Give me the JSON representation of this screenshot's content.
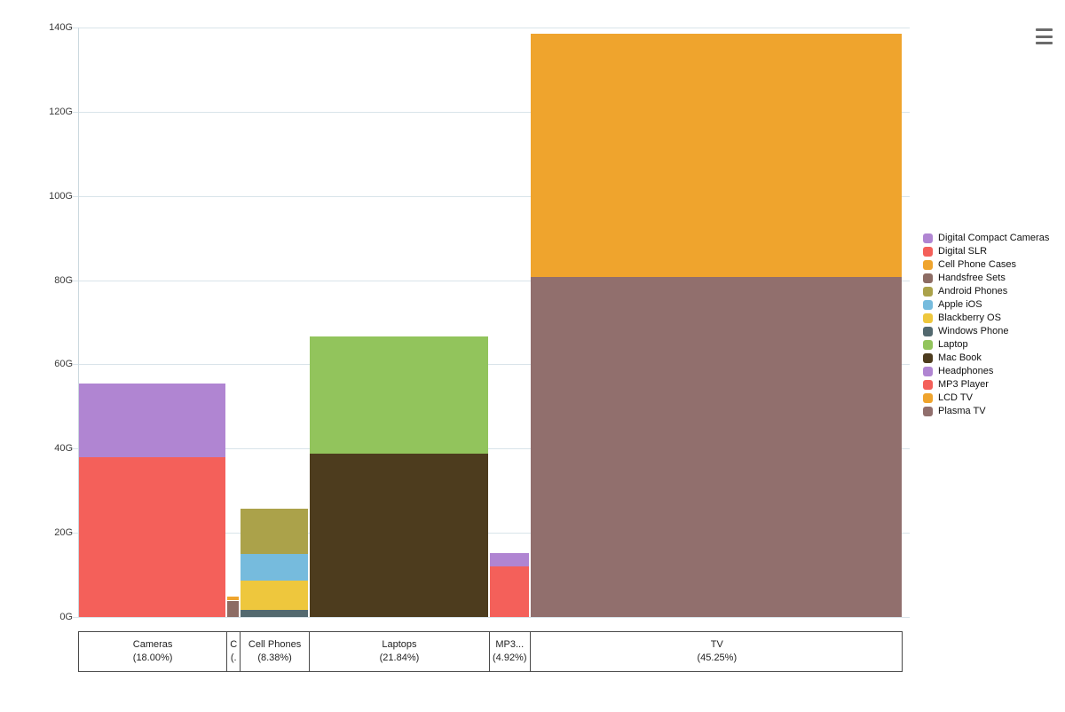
{
  "export_menu": {
    "icon": "hamburger-menu-icon"
  },
  "chart_data": {
    "type": "mekko",
    "title": "",
    "value_suffix": "G",
    "grid": true,
    "legend_position": "right",
    "y_axis": {
      "min": 0,
      "max": 140,
      "step": 20,
      "ticks": [
        "0G",
        "20G",
        "40G",
        "60G",
        "80G",
        "100G",
        "120G",
        "140G"
      ]
    },
    "columns": [
      {
        "category": "Cameras",
        "pct_label": "(18.00%)",
        "width_pct": 18.0,
        "segments": [
          {
            "name": "Digital SLR",
            "value": 38.0,
            "color": "#f4605a"
          },
          {
            "name": "Digital Compact Cameras",
            "value": 17.5,
            "color": "#b085d2"
          }
        ]
      },
      {
        "category": "C",
        "pct_label": "(.",
        "width_pct": 1.61,
        "segments": [
          {
            "name": "Handsfree Sets",
            "value": 3.9,
            "color": "#8d6c64"
          },
          {
            "name": "Cell Phone Cases",
            "value": 1.0,
            "color": "#efa42d"
          }
        ]
      },
      {
        "category": "Cell Phones",
        "pct_label": "(8.38%)",
        "width_pct": 8.38,
        "segments": [
          {
            "name": "Windows Phone",
            "value": 1.6,
            "color": "#53696f"
          },
          {
            "name": "Blackberry OS",
            "value": 7.0,
            "color": "#eec73d"
          },
          {
            "name": "Apple iOS",
            "value": 6.3,
            "color": "#76bbdd"
          },
          {
            "name": "Android Phones",
            "value": 10.9,
            "color": "#aba24a"
          }
        ]
      },
      {
        "category": "Laptops",
        "pct_label": "(21.84%)",
        "width_pct": 21.84,
        "segments": [
          {
            "name": "Mac Book",
            "value": 38.7,
            "color": "#4d3c1e"
          },
          {
            "name": "Laptop",
            "value": 27.9,
            "color": "#92c45c"
          }
        ]
      },
      {
        "category": "MP3...",
        "pct_label": "(4.92%)",
        "width_pct": 4.92,
        "segments": [
          {
            "name": "MP3 Player",
            "value": 12.1,
            "color": "#f4605a"
          },
          {
            "name": "Headphones",
            "value": 3.0,
            "color": "#b085d2"
          }
        ]
      },
      {
        "category": "TV",
        "pct_label": "(45.25%)",
        "width_pct": 45.25,
        "segments": [
          {
            "name": "Plasma TV",
            "value": 80.7,
            "color": "#916f6d"
          },
          {
            "name": "LCD TV",
            "value": 57.9,
            "color": "#efa42d"
          }
        ]
      }
    ],
    "legend": [
      {
        "label": "Digital Compact Cameras",
        "color": "#b085d2"
      },
      {
        "label": "Digital SLR",
        "color": "#f4605a"
      },
      {
        "label": "Cell Phone Cases",
        "color": "#efa42d"
      },
      {
        "label": "Handsfree Sets",
        "color": "#8d6c64"
      },
      {
        "label": "Android Phones",
        "color": "#aba24a"
      },
      {
        "label": "Apple iOS",
        "color": "#76bbdd"
      },
      {
        "label": "Blackberry OS",
        "color": "#eec73d"
      },
      {
        "label": "Windows Phone",
        "color": "#53696f"
      },
      {
        "label": "Laptop",
        "color": "#92c45c"
      },
      {
        "label": "Mac Book",
        "color": "#4d3c1e"
      },
      {
        "label": "Headphones",
        "color": "#b085d2"
      },
      {
        "label": "MP3 Player",
        "color": "#f4605a"
      },
      {
        "label": "LCD TV",
        "color": "#efa42d"
      },
      {
        "label": "Plasma TV",
        "color": "#916f6d"
      }
    ]
  }
}
